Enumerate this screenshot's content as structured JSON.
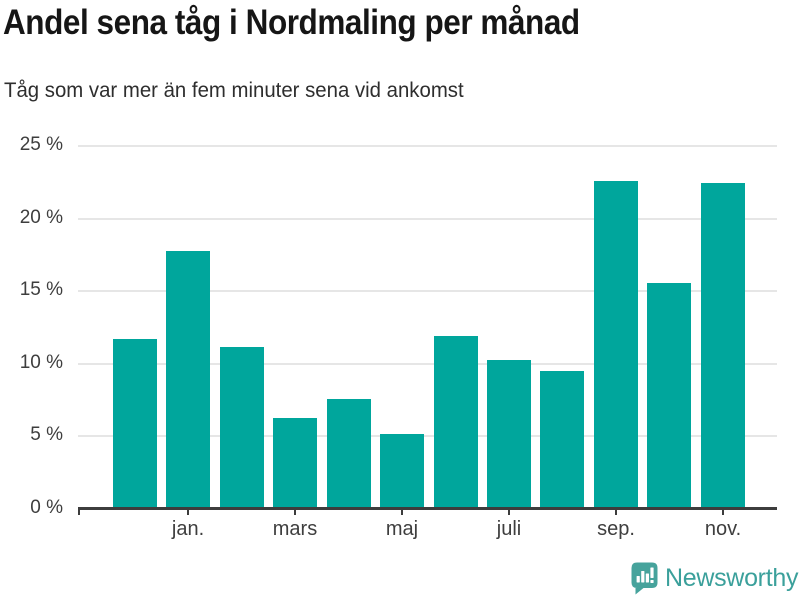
{
  "header": {
    "title": "Andel sena tåg i Nordmaling per månad",
    "subtitle": "Tåg som var mer än fem minuter sena vid ankomst"
  },
  "chart_data": {
    "type": "bar",
    "title": "Andel sena tåg i Nordmaling per månad",
    "subtitle": "Tåg som var mer än fem minuter sena vid ankomst",
    "categories": [
      "",
      "jan.",
      "",
      "mars",
      "",
      "maj",
      "",
      "juli",
      "",
      "sep.",
      "",
      "nov."
    ],
    "values": [
      11.6,
      17.7,
      11.1,
      6.2,
      7.5,
      5.1,
      11.8,
      10.2,
      9.4,
      22.5,
      15.5,
      22.4
    ],
    "unit": "%",
    "y_ticks": [
      0,
      5,
      10,
      15,
      20,
      25
    ],
    "y_tick_suffix": " %",
    "ylim": [
      0,
      25
    ],
    "xlabel": "",
    "ylabel": "",
    "grid": true,
    "legend_position": "none",
    "bar_color": "#00a69c"
  },
  "footer": {
    "brand": "Newsworthy",
    "logo_icon": "bar-chart-pin-icon",
    "brand_color": "#3ba09b",
    "icon_color": "#46a39c"
  }
}
